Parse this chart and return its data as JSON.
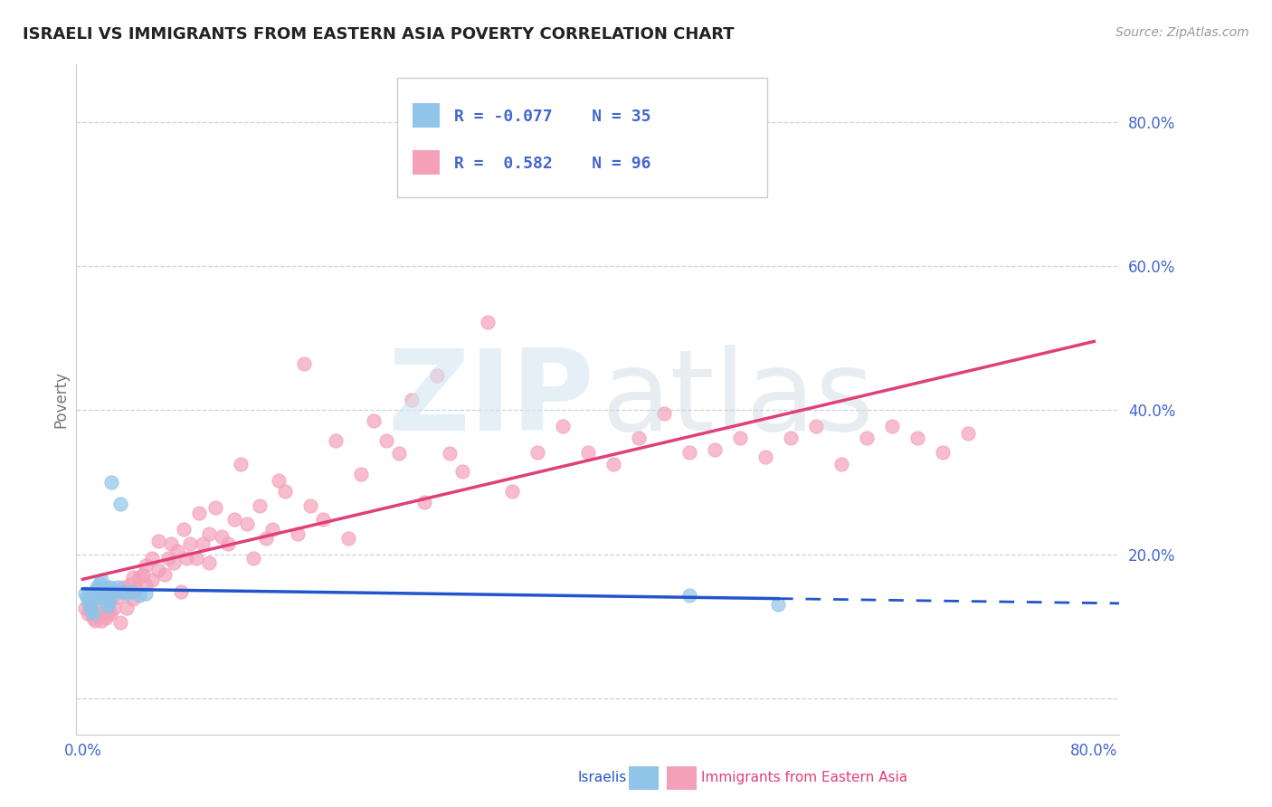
{
  "title": "ISRAELI VS IMMIGRANTS FROM EASTERN ASIA POVERTY CORRELATION CHART",
  "source": "Source: ZipAtlas.com",
  "ylabel": "Poverty",
  "xlim": [
    -0.005,
    0.82
  ],
  "ylim": [
    -0.05,
    0.88
  ],
  "yticks": [
    0.0,
    0.2,
    0.4,
    0.6,
    0.8
  ],
  "ytick_labels_right": [
    "",
    "20.0%",
    "40.0%",
    "60.0%",
    "80.0%"
  ],
  "xtick_positions": [
    0.0,
    0.2,
    0.4,
    0.6,
    0.8
  ],
  "xtick_labels": [
    "0.0%",
    "",
    "",
    "",
    "80.0%"
  ],
  "color_israeli": "#90c4e8",
  "color_eastern_asia": "#f4a0b8",
  "color_trendline_israeli": "#2255cc",
  "color_trendline_ea": "#e0407a",
  "label_israelis": "Israelis",
  "label_ea": "Immigrants from Eastern Asia",
  "r1": "-0.077",
  "n1": "35",
  "r2": "0.582",
  "n2": "96",
  "background_color": "#ffffff",
  "grid_color": "#c8d4e0",
  "title_color": "#222222",
  "source_color": "#999999",
  "tick_color": "#4466cc",
  "israeli_x": [
    0.002,
    0.003,
    0.005,
    0.005,
    0.006,
    0.007,
    0.008,
    0.009,
    0.01,
    0.01,
    0.011,
    0.012,
    0.013,
    0.014,
    0.015,
    0.015,
    0.016,
    0.017,
    0.018,
    0.019,
    0.02,
    0.021,
    0.022,
    0.023,
    0.025,
    0.026,
    0.028,
    0.03,
    0.032,
    0.035,
    0.04,
    0.045,
    0.05,
    0.48,
    0.55
  ],
  "israeli_y": [
    0.145,
    0.14,
    0.138,
    0.132,
    0.128,
    0.122,
    0.118,
    0.145,
    0.15,
    0.138,
    0.155,
    0.148,
    0.16,
    0.142,
    0.165,
    0.155,
    0.148,
    0.14,
    0.138,
    0.132,
    0.128,
    0.135,
    0.155,
    0.3,
    0.15,
    0.148,
    0.155,
    0.27,
    0.148,
    0.145,
    0.148,
    0.143,
    0.145,
    0.143,
    0.13
  ],
  "ea_x": [
    0.002,
    0.004,
    0.006,
    0.008,
    0.01,
    0.01,
    0.012,
    0.014,
    0.015,
    0.016,
    0.018,
    0.018,
    0.02,
    0.02,
    0.022,
    0.025,
    0.025,
    0.028,
    0.03,
    0.03,
    0.032,
    0.035,
    0.035,
    0.038,
    0.04,
    0.04,
    0.042,
    0.045,
    0.048,
    0.05,
    0.05,
    0.055,
    0.055,
    0.06,
    0.06,
    0.065,
    0.068,
    0.07,
    0.072,
    0.075,
    0.078,
    0.08,
    0.082,
    0.085,
    0.09,
    0.092,
    0.095,
    0.1,
    0.1,
    0.105,
    0.11,
    0.115,
    0.12,
    0.125,
    0.13,
    0.135,
    0.14,
    0.145,
    0.15,
    0.155,
    0.16,
    0.17,
    0.175,
    0.18,
    0.19,
    0.2,
    0.21,
    0.22,
    0.23,
    0.24,
    0.25,
    0.26,
    0.27,
    0.28,
    0.29,
    0.3,
    0.32,
    0.34,
    0.36,
    0.38,
    0.4,
    0.42,
    0.44,
    0.46,
    0.48,
    0.5,
    0.52,
    0.54,
    0.56,
    0.58,
    0.6,
    0.62,
    0.64,
    0.66,
    0.68,
    0.7
  ],
  "ea_y": [
    0.125,
    0.118,
    0.122,
    0.112,
    0.108,
    0.13,
    0.115,
    0.118,
    0.108,
    0.148,
    0.112,
    0.155,
    0.118,
    0.14,
    0.118,
    0.145,
    0.125,
    0.14,
    0.105,
    0.148,
    0.155,
    0.125,
    0.148,
    0.158,
    0.138,
    0.168,
    0.152,
    0.168,
    0.172,
    0.158,
    0.185,
    0.165,
    0.195,
    0.178,
    0.218,
    0.172,
    0.195,
    0.215,
    0.188,
    0.205,
    0.148,
    0.235,
    0.195,
    0.215,
    0.195,
    0.258,
    0.215,
    0.228,
    0.188,
    0.265,
    0.225,
    0.215,
    0.248,
    0.325,
    0.242,
    0.195,
    0.268,
    0.222,
    0.235,
    0.302,
    0.288,
    0.228,
    0.465,
    0.268,
    0.248,
    0.358,
    0.222,
    0.312,
    0.385,
    0.358,
    0.34,
    0.415,
    0.272,
    0.448,
    0.34,
    0.315,
    0.522,
    0.288,
    0.342,
    0.378,
    0.342,
    0.325,
    0.362,
    0.395,
    0.342,
    0.345,
    0.362,
    0.335,
    0.362,
    0.378,
    0.325,
    0.362,
    0.378,
    0.362,
    0.342,
    0.368
  ]
}
